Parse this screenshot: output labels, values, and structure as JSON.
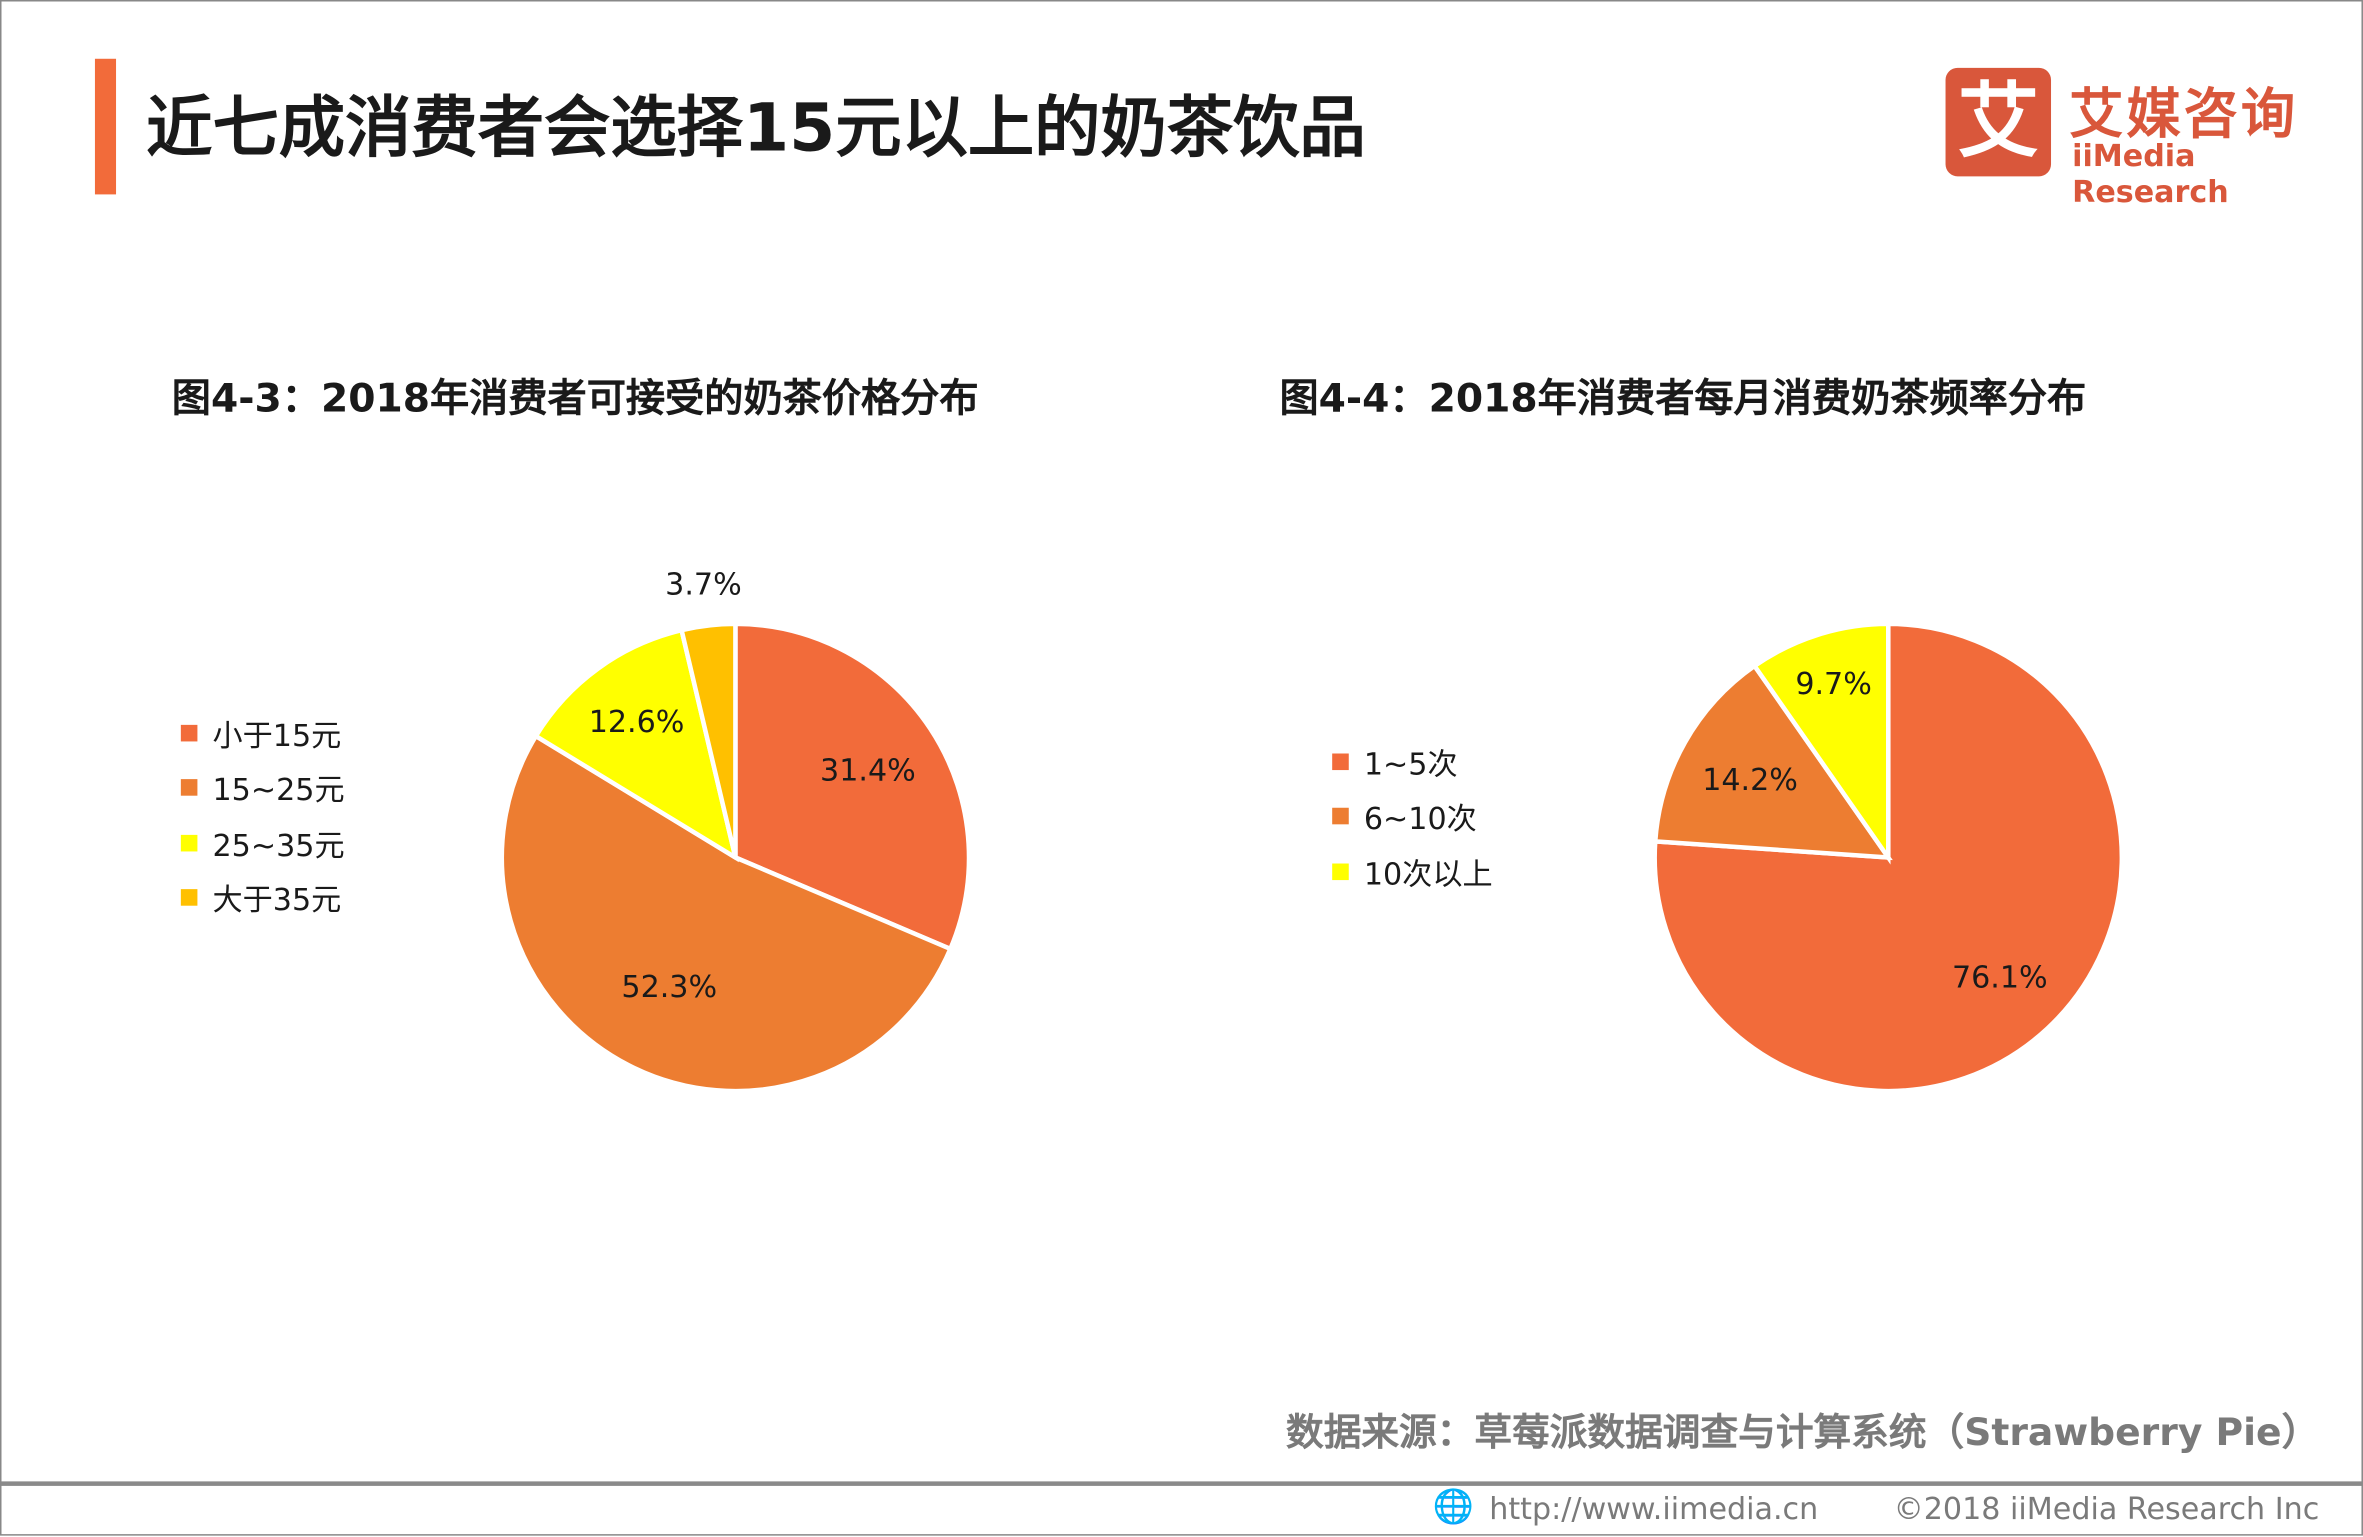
{
  "header": {
    "title": "近七成消费者会选择15元以上的奶茶饮品",
    "logo_mark": "艾",
    "logo_cn": "艾媒咨询",
    "logo_en": "iiMedia Research",
    "accent_color": "#F26B3A"
  },
  "chart_data": [
    {
      "type": "pie",
      "title": "图4-3：2018年消费者可接受的奶茶价格分布",
      "start": "top",
      "direction": "clockwise",
      "legend_position": "left",
      "categories": [
        "小于15元",
        "15~25元",
        "25~35元",
        "大于35元"
      ],
      "values": [
        31.4,
        52.3,
        12.6,
        3.7
      ],
      "labels": [
        "31.4%",
        "52.3%",
        "12.6%",
        "3.7%"
      ],
      "colors": [
        "#F26B3A",
        "#ED7D31",
        "#FFFF00",
        "#FFC000"
      ]
    },
    {
      "type": "pie",
      "title": "图4-4：2018年消费者每月消费奶茶频率分布",
      "start": "top",
      "direction": "clockwise",
      "legend_position": "left",
      "categories": [
        "1~5次",
        "6~10次",
        "10次以上"
      ],
      "values": [
        76.1,
        14.2,
        9.7
      ],
      "labels": [
        "76.1%",
        "14.2%",
        "9.7%"
      ],
      "colors": [
        "#F26B3A",
        "#ED7D31",
        "#FFFF00"
      ]
    }
  ],
  "footer": {
    "source": "数据来源：草莓派数据调查与计算系统（Strawberry Pie）",
    "url": "http://www.iimedia.cn",
    "copyright": "©2018  iiMedia Research  Inc"
  }
}
